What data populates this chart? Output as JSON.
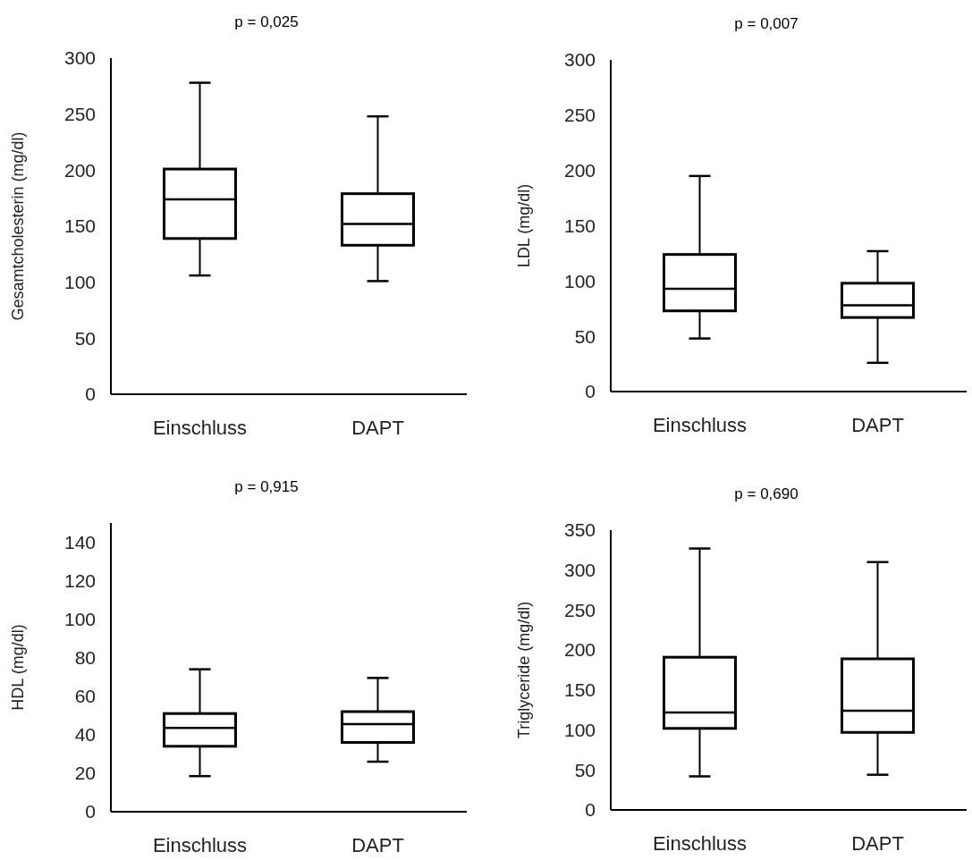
{
  "chart_data": [
    {
      "type": "box",
      "title": "p = 0,025",
      "ylabel": "Gesamtcholesterin (mg/dl)",
      "categories": [
        "Einschluss",
        "DAPT"
      ],
      "ylim": [
        0,
        300
      ],
      "yticks": [
        0,
        50,
        100,
        150,
        200,
        250,
        300
      ],
      "boxes": [
        {
          "low": 106,
          "q1": 139,
          "median": 174,
          "q3": 201,
          "high": 278
        },
        {
          "low": 101,
          "q1": 133,
          "median": 152,
          "q3": 179,
          "high": 248
        }
      ]
    },
    {
      "type": "box",
      "title": "p = 0,007",
      "ylabel": "LDL (mg/dl)",
      "categories": [
        "Einschluss",
        "DAPT"
      ],
      "ylim": [
        0,
        300
      ],
      "yticks": [
        0,
        50,
        100,
        150,
        200,
        250,
        300
      ],
      "boxes": [
        {
          "low": 48,
          "q1": 73,
          "median": 93,
          "q3": 124,
          "high": 195
        },
        {
          "low": 26,
          "q1": 67,
          "median": 78,
          "q3": 98,
          "high": 127
        }
      ]
    },
    {
      "type": "box",
      "title": "p = 0,915",
      "ylabel": "HDL (mg/dl)",
      "categories": [
        "Einschluss",
        "DAPT"
      ],
      "ylim": [
        0,
        150
      ],
      "yticks": [
        0,
        20,
        40,
        60,
        80,
        100,
        120,
        140
      ],
      "boxes": [
        {
          "low": 18.5,
          "q1": 34,
          "median": 43.5,
          "q3": 51,
          "high": 74
        },
        {
          "low": 26,
          "q1": 36,
          "median": 45.5,
          "q3": 52,
          "high": 69.5
        }
      ]
    },
    {
      "type": "box",
      "title": "p = 0,690",
      "ylabel": "Triglyceride (mg/dl)",
      "categories": [
        "Einschluss",
        "DAPT"
      ],
      "ylim": [
        0,
        350
      ],
      "yticks": [
        0,
        50,
        100,
        150,
        200,
        250,
        300,
        350
      ],
      "boxes": [
        {
          "low": 42,
          "q1": 102,
          "median": 122,
          "q3": 191,
          "high": 327
        },
        {
          "low": 44,
          "q1": 97,
          "median": 124,
          "q3": 189,
          "high": 310
        }
      ]
    }
  ]
}
